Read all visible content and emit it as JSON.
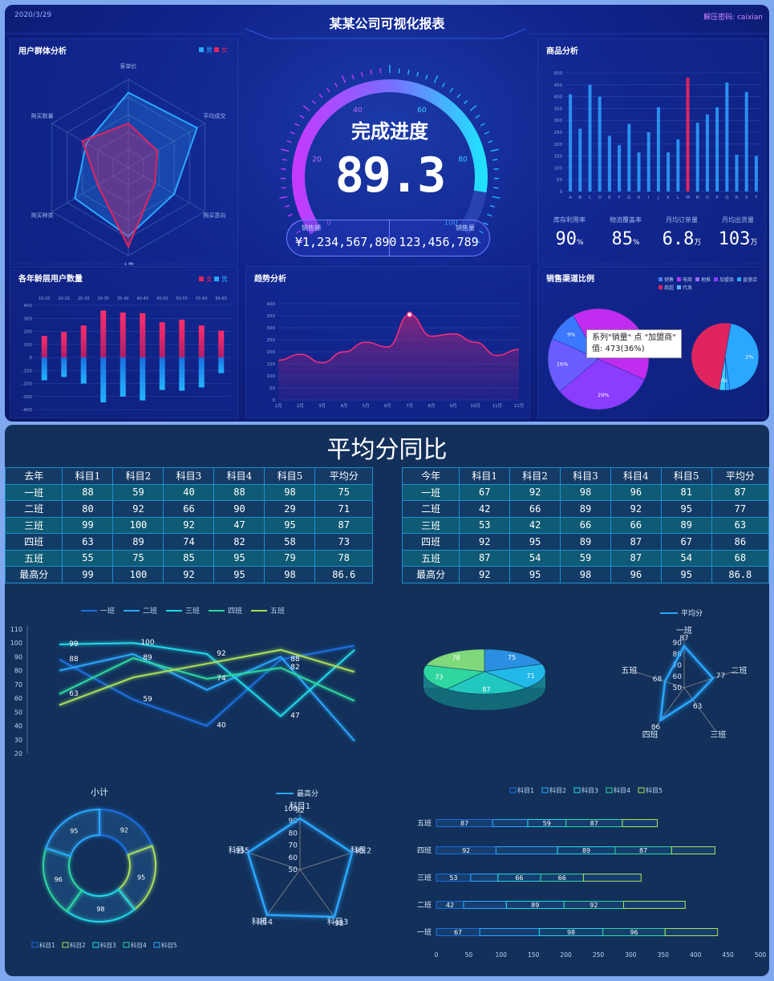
{
  "header": {
    "date": "2020/3/29",
    "title": "某某公司可视化报表",
    "password_label": "解压密码:",
    "password_value": "caixian"
  },
  "colors": {
    "accent_blue": "#2aa7ff",
    "accent_pink": "#e0245e",
    "accent_purple": "#b03cff",
    "cyan": "#22e0ff"
  },
  "radar_panel": {
    "title": "用户群体分析",
    "legend": [
      "男",
      "女"
    ],
    "axes": [
      "客单价",
      "平均成交",
      "购买意向",
      "人数",
      "购买种类",
      "购买数量"
    ],
    "series": [
      {
        "name": "男",
        "values": [
          85,
          90,
          60,
          78,
          70,
          55
        ]
      },
      {
        "name": "女",
        "values": [
          50,
          38,
          35,
          90,
          40,
          60
        ]
      }
    ]
  },
  "gauge": {
    "title": "完成进度",
    "value": "89.3",
    "percent": 89.3,
    "ticks": [
      "0",
      "20",
      "40",
      "60",
      "80",
      "100"
    ],
    "sales_label": "销售额",
    "sales_value": "¥1,234,567,890",
    "qty_label": "销售量",
    "qty_value": "123,456,789"
  },
  "product_panel": {
    "title": "商品分析",
    "yticks": [
      "0",
      "50",
      "100",
      "150",
      "200",
      "250",
      "300",
      "350",
      "400",
      "450",
      "500"
    ],
    "categories": [
      "A",
      "B",
      "C",
      "D",
      "E",
      "F",
      "G",
      "H",
      "I",
      "J",
      "K",
      "L",
      "M",
      "N",
      "O",
      "P",
      "Q",
      "R",
      "S",
      "T"
    ],
    "series": [
      {
        "values": [
          410,
          265,
          450,
          400,
          235,
          195,
          285,
          165,
          250,
          355,
          165,
          220,
          180,
          290,
          325,
          355,
          460,
          155,
          420,
          150
        ]
      },
      {
        "values": [
          0,
          0,
          0,
          0,
          0,
          0,
          0,
          0,
          0,
          0,
          0,
          0,
          480,
          0,
          0,
          0,
          0,
          0,
          0,
          0
        ]
      }
    ],
    "highlight_index": 12,
    "stats": [
      {
        "label": "库存利用率",
        "value": "90",
        "unit": "%"
      },
      {
        "label": "物流覆盖率",
        "value": "85",
        "unit": "%"
      },
      {
        "label": "月均订单量",
        "value": "6.8",
        "unit": "万"
      },
      {
        "label": "月均出货量",
        "value": "103",
        "unit": "万"
      }
    ]
  },
  "age_panel": {
    "title": "各年龄层用户数量",
    "legend": [
      "女",
      "男"
    ],
    "categories": [
      "15-20",
      "20-25",
      "25-30",
      "30-35",
      "35-40",
      "40-45",
      "45-50",
      "50-55",
      "55-60",
      "60-65"
    ],
    "yticks": [
      "400",
      "300",
      "200",
      "100",
      "0",
      "-100",
      "-200",
      "-300",
      "-400"
    ],
    "series": [
      {
        "name": "女",
        "values": [
          165,
          195,
          245,
          360,
          345,
          340,
          270,
          290,
          245,
          205
        ]
      },
      {
        "name": "男",
        "values": [
          -175,
          -150,
          -200,
          -345,
          -300,
          -330,
          -250,
          -255,
          -230,
          -120
        ]
      }
    ]
  },
  "trend_panel": {
    "title": "趋势分析",
    "yticks": [
      "0",
      "50",
      "100",
      "150",
      "200",
      "250",
      "300",
      "350",
      "400"
    ],
    "categories": [
      "1月",
      "2月",
      "3月",
      "4月",
      "5月",
      "6月",
      "7月",
      "8月",
      "9月",
      "10月",
      "11月",
      "12月"
    ],
    "values": [
      165,
      190,
      155,
      200,
      240,
      220,
      355,
      265,
      275,
      240,
      185,
      210
    ]
  },
  "channel_panel": {
    "title": "销售渠道比例",
    "legend": [
      "销售",
      "电商",
      "地推",
      "加盟商",
      "直营店",
      "商超",
      "代发"
    ],
    "pie_left": {
      "labels": [
        "36%",
        "29%",
        "16%",
        "9%"
      ],
      "values": [
        36,
        29,
        16,
        9
      ]
    },
    "pie_right": {
      "labels": [
        "2%",
        "3%"
      ],
      "values": [
        45,
        2,
        3,
        50
      ]
    },
    "tooltip_line1": "系列\"销量\" 点 \"加盟商\"",
    "tooltip_line2": "值: 473(36%)"
  },
  "section2": {
    "title": "平均分同比",
    "last_year": {
      "headers": [
        "去年",
        "科目1",
        "科目2",
        "科目3",
        "科目4",
        "科目5",
        "平均分"
      ],
      "rows": [
        [
          "一班",
          "88",
          "59",
          "40",
          "88",
          "98",
          "75"
        ],
        [
          "二班",
          "80",
          "92",
          "66",
          "90",
          "29",
          "71"
        ],
        [
          "三班",
          "99",
          "100",
          "92",
          "47",
          "95",
          "87"
        ],
        [
          "四班",
          "63",
          "89",
          "74",
          "82",
          "58",
          "73"
        ],
        [
          "五班",
          "55",
          "75",
          "85",
          "95",
          "79",
          "78"
        ],
        [
          "最高分",
          "99",
          "100",
          "92",
          "95",
          "98",
          "86.6"
        ]
      ]
    },
    "this_year": {
      "headers": [
        "今年",
        "科目1",
        "科目2",
        "科目3",
        "科目4",
        "科目5",
        "平均分"
      ],
      "rows": [
        [
          "一班",
          "67",
          "92",
          "98",
          "96",
          "81",
          "87"
        ],
        [
          "二班",
          "42",
          "66",
          "89",
          "92",
          "95",
          "77"
        ],
        [
          "三班",
          "53",
          "42",
          "66",
          "66",
          "89",
          "63"
        ],
        [
          "四班",
          "92",
          "95",
          "89",
          "87",
          "67",
          "86"
        ],
        [
          "五班",
          "87",
          "54",
          "59",
          "87",
          "54",
          "68"
        ],
        [
          "最高分",
          "92",
          "95",
          "98",
          "96",
          "95",
          "86.8"
        ]
      ]
    }
  },
  "chart_data": [
    {
      "type": "line",
      "legend": [
        "一班",
        "二班",
        "三班",
        "四班",
        "五班"
      ],
      "categories": [
        "科目1",
        "科目2",
        "科目3",
        "科目4",
        "科目5"
      ],
      "yticks": [
        "20",
        "30",
        "40",
        "50",
        "60",
        "70",
        "80",
        "90",
        "100",
        "110"
      ],
      "ylim": [
        20,
        110
      ],
      "series": [
        {
          "name": "一班",
          "values": [
            88,
            59,
            40,
            88,
            98
          ]
        },
        {
          "name": "二班",
          "values": [
            80,
            92,
            66,
            90,
            29
          ]
        },
        {
          "name": "三班",
          "values": [
            99,
            100,
            92,
            47,
            95
          ]
        },
        {
          "name": "四班",
          "values": [
            63,
            89,
            74,
            82,
            58
          ]
        },
        {
          "name": "五班",
          "values": [
            55,
            75,
            85,
            95,
            79
          ]
        }
      ],
      "point_labels": [
        "99",
        "100",
        "88",
        "89",
        "92",
        "74",
        "82",
        "88",
        "98",
        "95",
        "63",
        "59",
        "40",
        "47",
        "58"
      ]
    },
    {
      "type": "pie",
      "labels": [
        "75",
        "71",
        "87",
        "73",
        "78"
      ],
      "values": [
        75,
        71,
        87,
        73,
        78
      ]
    },
    {
      "type": "radar",
      "legend": [
        "平均分"
      ],
      "axes": [
        "一班",
        "二班",
        "三班",
        "四班",
        "五班"
      ],
      "ticks": [
        "50",
        "60",
        "70",
        "80",
        "90"
      ],
      "values": [
        87,
        77,
        63,
        86,
        68
      ],
      "value_labels": [
        "87",
        "77",
        "63",
        "86",
        "68"
      ]
    },
    {
      "type": "donut",
      "title": "小计",
      "legend": [
        "科目1",
        "科目2",
        "科目3",
        "科目4",
        "科目5"
      ],
      "values": [
        92,
        95,
        98,
        96,
        95
      ],
      "labels": [
        "92",
        "95",
        "98",
        "96",
        "95"
      ]
    },
    {
      "type": "radar",
      "legend": [
        "最高分"
      ],
      "axes": [
        "科目1",
        "科目2",
        "科目3",
        "科目4",
        "科目5"
      ],
      "ticks": [
        "50",
        "60",
        "70",
        "80",
        "90",
        "100"
      ],
      "values": [
        92,
        95,
        98,
        96,
        95
      ],
      "value_labels": [
        "92",
        "95",
        "98",
        "96",
        "95"
      ]
    },
    {
      "type": "bar",
      "stacked": true,
      "orientation": "horizontal",
      "legend": [
        "科目1",
        "科目2",
        "科目3",
        "科目4",
        "科目5"
      ],
      "categories": [
        "五班",
        "四班",
        "三班",
        "二班",
        "一班"
      ],
      "xticks": [
        "0",
        "50",
        "100",
        "150",
        "200",
        "250",
        "300",
        "350",
        "400",
        "450",
        "500"
      ],
      "xlim": [
        0,
        500
      ],
      "series": [
        {
          "name": "科目1",
          "values": [
            87,
            92,
            53,
            42,
            67
          ]
        },
        {
          "name": "科目2",
          "values": [
            54,
            95,
            42,
            66,
            92
          ]
        },
        {
          "name": "科目3",
          "values": [
            59,
            89,
            66,
            89,
            98
          ]
        },
        {
          "name": "科目4",
          "values": [
            87,
            87,
            66,
            92,
            96
          ]
        },
        {
          "name": "科目5",
          "values": [
            54,
            67,
            89,
            95,
            81
          ]
        }
      ],
      "segment_labels": [
        [
          "87",
          "",
          "59",
          "87",
          ""
        ],
        [
          "92",
          "",
          "89",
          "87",
          ""
        ],
        [
          "53",
          "",
          "66",
          "66",
          ""
        ],
        [
          "42",
          "",
          "89",
          "92",
          ""
        ],
        [
          "67",
          "",
          "98",
          "96",
          ""
        ]
      ]
    }
  ]
}
